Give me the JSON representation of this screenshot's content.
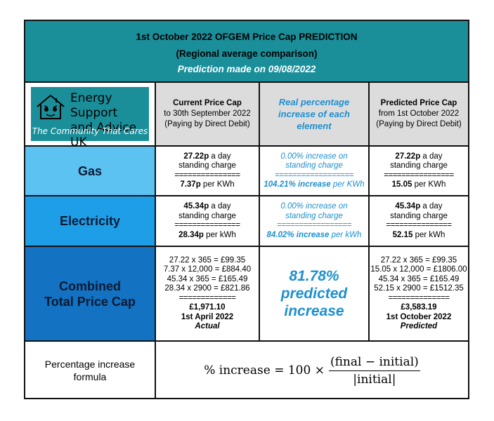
{
  "header": {
    "title": "1st October 2022 OFGEM Price Cap PREDICTION",
    "subtitle": "(Regional average comparison)",
    "prediction_note": "Prediction made on 09/08/2022"
  },
  "logo": {
    "name_line1": "Energy Support",
    "name_line2": "and Advice UK",
    "tagline": "The Community That Cares",
    "colors": {
      "background": "#1a8f9a"
    }
  },
  "columns": {
    "current": {
      "title": "Current Price Cap",
      "line2": "to 30th September 2022",
      "line3": "(Paying by Direct Debit)"
    },
    "real": {
      "title_line1": "Real percentage",
      "title_line2": "increase of each",
      "title_line3": "element"
    },
    "predicted": {
      "title": "Predicted Price Cap",
      "line2": "from 1st October 2022",
      "line3": "(Paying by Direct Debit)"
    }
  },
  "rows": {
    "gas": {
      "label": "Gas",
      "current": {
        "standing": "27.22p",
        "standing_suffix": " a day",
        "standing_label": "standing charge",
        "sep": "===============",
        "unit": "7.37p",
        "unit_suffix": " per KWh"
      },
      "real": {
        "standing_pct": "0.00% increase on",
        "standing_label": "standing charge",
        "sep": "==================",
        "unit_pct": "104.21% increase",
        "unit_suffix": " per KWh"
      },
      "predicted": {
        "standing": "27.22p",
        "standing_suffix": " a day",
        "standing_label": "standing charge",
        "sep": "================",
        "unit": "15.05",
        "unit_suffix": " per KWh"
      }
    },
    "electricity": {
      "label": "Electricity",
      "current": {
        "standing": "45.34p",
        "standing_suffix": " a day",
        "standing_label": "standing charge",
        "sep": "===============",
        "unit": "28.34p",
        "unit_suffix": " per kWh"
      },
      "real": {
        "standing_pct": "0.00% increase on",
        "standing_label": "standing charge",
        "sep": "=================",
        "unit_pct": "84.02% increase",
        "unit_suffix": " per kWh"
      },
      "predicted": {
        "standing": "45.34p",
        "standing_suffix": " a day",
        "standing_label": "standing charge",
        "sep": "===============",
        "unit": "52.15",
        "unit_suffix": " per kWh"
      }
    },
    "combined": {
      "label_line1": "Combined",
      "label_line2": "Total Price Cap",
      "current": {
        "lines": [
          "27.22 x 365 = £99.35",
          "7.37 x 12,000 = £884.40",
          "45.34 x 365 = £165.49",
          "28.34 x 2900 = £821.86"
        ],
        "sep": "=============",
        "total": "£1,971.10",
        "date": "1st April 2022",
        "status": "Actual"
      },
      "real": {
        "line1": "81.78%",
        "line2": "predicted",
        "line3": "increase"
      },
      "predicted": {
        "lines": [
          "27.22 x 365 = £99.35",
          "15.05 x 12,000 = £1806.00",
          "45.34 x 365 = £165.49",
          "52.15 x 2900 = £1512.35"
        ],
        "sep": "==============",
        "total": "£3,583.19",
        "date": "1st October 2022",
        "status": "Predicted"
      }
    }
  },
  "formula": {
    "label_line1": "Percentage increase",
    "label_line2": "formula",
    "lhs": "% increase = 100 ×",
    "numerator": "(final − initial)",
    "denominator": "|initial|"
  },
  "colors": {
    "header_bg": "#1a8f9a",
    "prediction_note": "#ffffff",
    "grey_cells": "#dcdcdc",
    "gas_label_bg": "#5bc2f2",
    "electricity_label_bg": "#1f9ee8",
    "combined_label_bg": "#1372c1",
    "accent_blue_text": "#1e90d0"
  }
}
